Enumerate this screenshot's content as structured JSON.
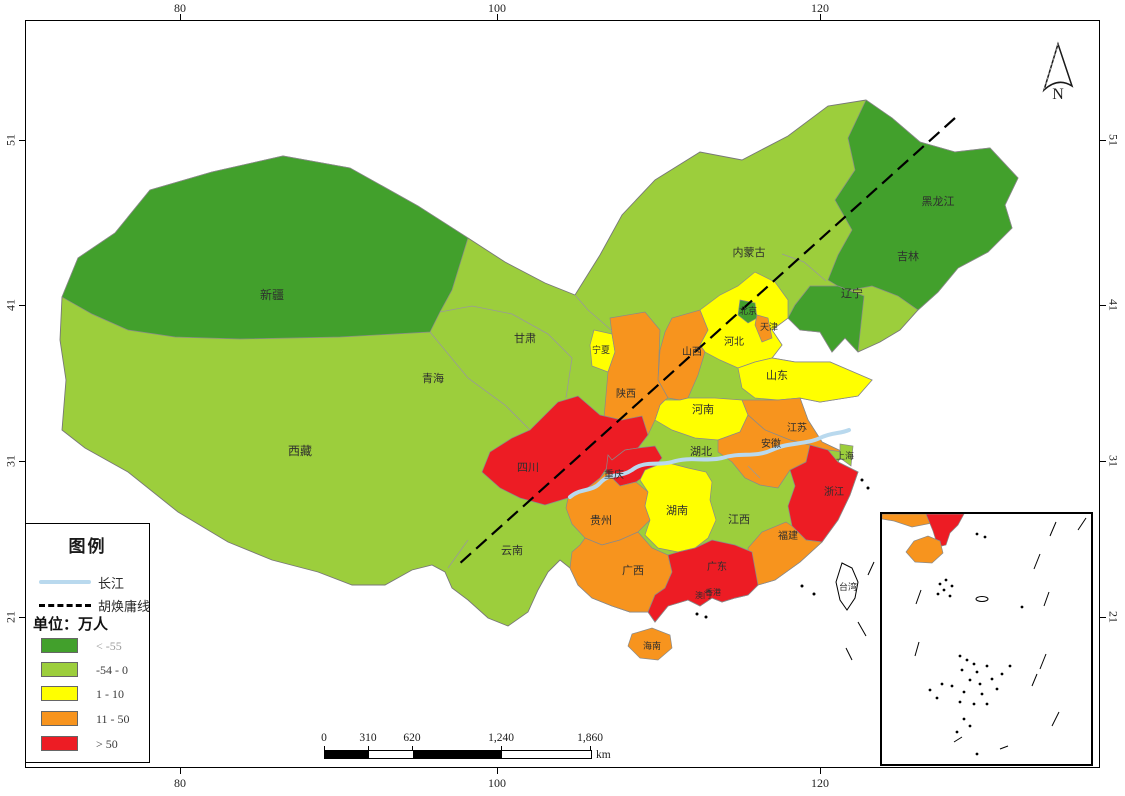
{
  "axes": {
    "top": [
      "80",
      "100",
      "120"
    ],
    "bottom": [
      "80",
      "100",
      "120"
    ],
    "left": [
      "51",
      "41",
      "31",
      "21"
    ],
    "right": [
      "51",
      "41",
      "31",
      "21"
    ]
  },
  "north_label": "N",
  "legend": {
    "title": "图例",
    "river_label": "长江",
    "hu_line_label": "胡焕庸线",
    "unit_label": "单位：万人",
    "river_color": "#B9D9EE",
    "hu_line_color": "#000000",
    "no_data_color": "#FFFFFF",
    "classes": [
      {
        "key": "dark-green",
        "label": "< -55",
        "color": "#42A02C"
      },
      {
        "key": "light-green",
        "label": "-54 - 0",
        "color": "#9CCE3C"
      },
      {
        "key": "yellow",
        "label": "1 - 10",
        "color": "#FFFF00"
      },
      {
        "key": "orange",
        "label": "11 - 50",
        "color": "#F7941E"
      },
      {
        "key": "red",
        "label": "> 50",
        "color": "#ED1C24"
      }
    ]
  },
  "scalebar": {
    "ticks": [
      "0",
      "310",
      "620",
      "1,240",
      "1,860"
    ],
    "unit": "km"
  },
  "map": {
    "provinces": [
      {
        "id": "xinjiang",
        "name": "新疆",
        "class": "dark-green"
      },
      {
        "id": "xizang",
        "name": "西藏",
        "class": "light-green"
      },
      {
        "id": "qinghai",
        "name": "青海",
        "class": "light-green"
      },
      {
        "id": "gansu",
        "name": "甘肃",
        "class": "light-green"
      },
      {
        "id": "neimenggu",
        "name": "内蒙古",
        "class": "light-green"
      },
      {
        "id": "heilongjiang",
        "name": "黑龙江",
        "class": "dark-green"
      },
      {
        "id": "jilin",
        "name": "吉林",
        "class": "light-green"
      },
      {
        "id": "liaoning",
        "name": "辽宁",
        "class": "dark-green"
      },
      {
        "id": "beijing",
        "name": "北京",
        "class": "dark-green"
      },
      {
        "id": "tianjin",
        "name": "天津",
        "class": "orange"
      },
      {
        "id": "hebei",
        "name": "河北",
        "class": "yellow"
      },
      {
        "id": "shanxi",
        "name": "山西",
        "class": "orange"
      },
      {
        "id": "shandong",
        "name": "山东",
        "class": "yellow"
      },
      {
        "id": "henan",
        "name": "河南",
        "class": "yellow"
      },
      {
        "id": "ningxia",
        "name": "宁夏",
        "class": "yellow"
      },
      {
        "id": "shaanxi",
        "name": "陕西",
        "class": "orange"
      },
      {
        "id": "jiangsu",
        "name": "江苏",
        "class": "orange"
      },
      {
        "id": "anhui",
        "name": "安徽",
        "class": "orange"
      },
      {
        "id": "shanghai",
        "name": "上海",
        "class": "light-green"
      },
      {
        "id": "hubei",
        "name": "湖北",
        "class": "light-green"
      },
      {
        "id": "chongqing",
        "name": "重庆",
        "class": "red"
      },
      {
        "id": "sichuan",
        "name": "四川",
        "class": "red"
      },
      {
        "id": "guizhou",
        "name": "贵州",
        "class": "orange"
      },
      {
        "id": "hunan",
        "name": "湖南",
        "class": "yellow"
      },
      {
        "id": "jiangxi",
        "name": "江西",
        "class": "light-green"
      },
      {
        "id": "zhejiang",
        "name": "浙江",
        "class": "red"
      },
      {
        "id": "fujian",
        "name": "福建",
        "class": "orange"
      },
      {
        "id": "yunnan",
        "name": "云南",
        "class": "light-green"
      },
      {
        "id": "guangxi",
        "name": "广西",
        "class": "orange"
      },
      {
        "id": "guangdong",
        "name": "广东",
        "class": "red"
      },
      {
        "id": "hainan",
        "name": "海南",
        "class": "orange"
      },
      {
        "id": "taiwan",
        "name": "台湾",
        "class": "no-data"
      },
      {
        "id": "xianggang",
        "name": "香港",
        "class": "no-data"
      },
      {
        "id": "aomen",
        "name": "澳门",
        "class": "no-data"
      }
    ]
  }
}
